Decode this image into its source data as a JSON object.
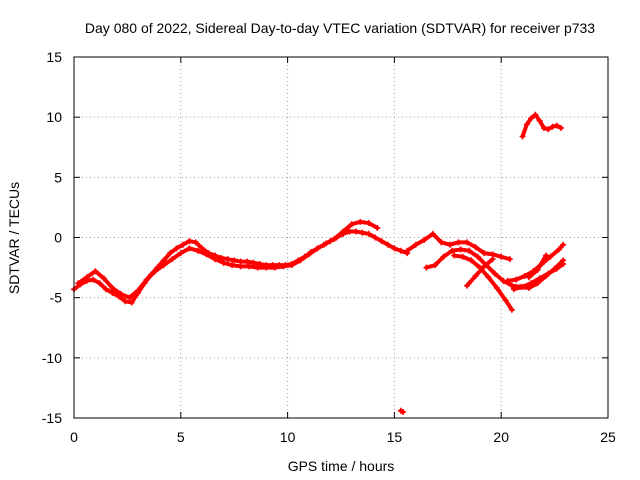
{
  "chart_data": {
    "type": "scatter",
    "title": "Day 080 of 2022, Sidereal Day-to-day VTEC variation (SDTVAR) for receiver p733",
    "xlabel": "GPS time / hours",
    "ylabel": "SDTVAR / TECUs",
    "xlim": [
      0,
      25
    ],
    "ylim": [
      -15,
      15
    ],
    "xticks": [
      0,
      5,
      10,
      15,
      20,
      25
    ],
    "yticks": [
      -15,
      -10,
      -5,
      0,
      5,
      10,
      15
    ],
    "grid": true,
    "marker_color": "#ff0000",
    "series": [
      {
        "name": "track-main",
        "x": [
          0.0,
          0.3,
          0.6,
          0.9,
          1.2,
          1.5,
          1.8,
          2.1,
          2.4,
          2.7,
          3.0,
          3.3,
          3.6,
          3.9,
          4.2,
          4.5,
          4.8,
          5.1,
          5.4,
          5.7,
          6.0,
          6.3,
          6.6,
          6.9,
          7.2,
          7.5,
          7.8,
          8.1,
          8.4,
          8.7,
          9.0,
          9.3,
          9.6,
          9.9,
          10.2,
          10.5,
          10.8,
          11.1,
          11.4,
          11.7,
          12.0,
          12.3,
          12.6,
          12.9,
          13.2,
          13.5,
          13.8,
          14.1,
          14.4,
          14.7,
          15.0,
          15.3,
          15.6
        ],
        "y": [
          -4.3,
          -3.9,
          -3.6,
          -3.5,
          -3.8,
          -4.3,
          -4.6,
          -4.9,
          -5.3,
          -5.4,
          -4.6,
          -3.8,
          -3.1,
          -2.5,
          -1.9,
          -1.3,
          -0.9,
          -0.6,
          -0.3,
          -0.4,
          -0.9,
          -1.3,
          -1.5,
          -1.7,
          -1.8,
          -1.9,
          -2.0,
          -2.0,
          -2.1,
          -2.2,
          -2.3,
          -2.3,
          -2.3,
          -2.3,
          -2.2,
          -1.9,
          -1.6,
          -1.2,
          -0.9,
          -0.6,
          -0.3,
          0.0,
          0.3,
          0.5,
          0.5,
          0.4,
          0.3,
          0.0,
          -0.3,
          -0.6,
          -0.9,
          -1.1,
          -1.3
        ]
      },
      {
        "name": "track-main-offset",
        "x": [
          0.2,
          0.6,
          1.0,
          1.4,
          1.8,
          2.2,
          2.6,
          3.0,
          3.4,
          3.8,
          4.2,
          4.6,
          5.0,
          5.4,
          5.8,
          6.2,
          6.6,
          7.0,
          7.4,
          7.8,
          8.2,
          8.6,
          9.0,
          9.4,
          9.8,
          10.2,
          10.6,
          11.0,
          11.4,
          11.8,
          12.2,
          12.6,
          13.0,
          13.4,
          13.8,
          14.2
        ],
        "y": [
          -3.8,
          -3.3,
          -2.8,
          -3.4,
          -4.2,
          -4.7,
          -5.0,
          -4.4,
          -3.5,
          -2.8,
          -2.3,
          -1.8,
          -1.3,
          -0.9,
          -1.1,
          -1.4,
          -1.8,
          -2.1,
          -2.3,
          -2.4,
          -2.4,
          -2.5,
          -2.5,
          -2.5,
          -2.4,
          -2.3,
          -1.9,
          -1.4,
          -0.9,
          -0.5,
          -0.1,
          0.5,
          1.1,
          1.3,
          1.2,
          0.8
        ]
      },
      {
        "name": "track-17h-a",
        "x": [
          15.6,
          16.0,
          16.4,
          16.8,
          17.2,
          17.6,
          18.0,
          18.4,
          18.8,
          19.2,
          19.6,
          20.0,
          20.4
        ],
        "y": [
          -1.1,
          -0.6,
          -0.2,
          0.3,
          -0.4,
          -0.6,
          -0.4,
          -0.4,
          -0.8,
          -1.3,
          -1.4,
          -1.6,
          -1.8
        ]
      },
      {
        "name": "track-17h-b",
        "x": [
          16.5,
          16.9,
          17.3,
          17.7,
          18.1,
          18.5,
          18.9,
          19.3,
          19.7,
          20.1,
          20.5,
          20.9,
          21.3,
          21.7,
          22.1,
          22.5,
          22.9
        ],
        "y": [
          -2.5,
          -2.3,
          -1.6,
          -1.1,
          -1.0,
          -1.1,
          -1.6,
          -2.3,
          -3.0,
          -3.6,
          -4.0,
          -4.1,
          -4.2,
          -3.8,
          -3.2,
          -2.6,
          -1.9
        ]
      },
      {
        "name": "track-19h-drop",
        "x": [
          17.8,
          18.2,
          18.6,
          19.0,
          19.4,
          19.8,
          20.2,
          20.5
        ],
        "y": [
          -1.5,
          -1.6,
          -1.9,
          -2.5,
          -3.3,
          -4.2,
          -5.2,
          -6.0
        ]
      },
      {
        "name": "track-19h-rise",
        "x": [
          18.4,
          18.8,
          19.2,
          19.6
        ],
        "y": [
          -4.0,
          -3.2,
          -2.4,
          -1.8
        ]
      },
      {
        "name": "track-21h",
        "x": [
          20.3,
          20.7,
          21.1,
          21.5,
          21.9,
          22.3,
          22.7,
          22.9
        ],
        "y": [
          -3.6,
          -3.5,
          -3.2,
          -2.8,
          -2.2,
          -1.6,
          -1.0,
          -0.6
        ]
      },
      {
        "name": "track-21h-low",
        "x": [
          20.6,
          21.0,
          21.4,
          21.8,
          22.2,
          22.6,
          22.9
        ],
        "y": [
          -4.3,
          -4.1,
          -3.8,
          -3.4,
          -3.0,
          -2.6,
          -2.2
        ]
      },
      {
        "name": "track-21h-mid",
        "x": [
          21.3,
          21.7,
          22.1
        ],
        "y": [
          -3.3,
          -2.7,
          -1.5
        ]
      },
      {
        "name": "cluster-10h",
        "x": [
          21.0,
          21.2,
          21.4,
          21.6,
          21.8,
          22.0,
          22.2,
          22.4,
          22.6,
          22.8
        ],
        "y": [
          8.4,
          9.4,
          9.9,
          10.2,
          9.7,
          9.1,
          9.0,
          9.2,
          9.3,
          9.1
        ]
      },
      {
        "name": "isolated-point",
        "x": [
          15.3,
          15.4
        ],
        "y": [
          -14.4,
          -14.5
        ]
      }
    ]
  }
}
